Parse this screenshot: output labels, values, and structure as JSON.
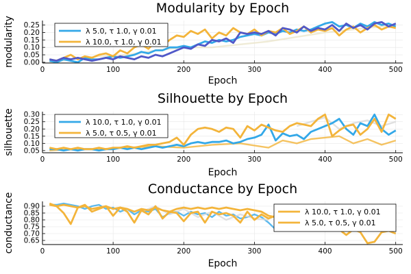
{
  "chart_data": [
    {
      "type": "line",
      "title": "Modularity by Epoch",
      "xlabel": "Epoch",
      "ylabel": "modularity",
      "xlim": [
        0,
        510
      ],
      "ylim": [
        -0.005,
        0.28
      ],
      "xticks": [
        0,
        100,
        200,
        300,
        400,
        500
      ],
      "yticks": [
        0.0,
        0.05,
        0.1,
        0.15,
        0.2,
        0.25
      ],
      "ytick_labels": [
        "0.00",
        "0.05",
        "0.10",
        "0.15",
        "0.20",
        "0.25"
      ],
      "grid": true,
      "legend_position": "top-left",
      "series": [
        {
          "name": "λ 5.0, τ 1.0, γ 0.01",
          "color": "#33a8e8",
          "x": [
            10,
            20,
            30,
            40,
            50,
            60,
            70,
            80,
            90,
            100,
            110,
            120,
            130,
            140,
            150,
            160,
            170,
            180,
            190,
            200,
            210,
            220,
            230,
            240,
            250,
            260,
            270,
            280,
            290,
            300,
            310,
            320,
            330,
            340,
            350,
            360,
            370,
            380,
            390,
            400,
            410,
            420,
            430,
            440,
            450,
            460,
            470,
            480,
            490,
            500
          ],
          "values": [
            0.01,
            0.0,
            0.02,
            0.01,
            0.0,
            0.03,
            0.02,
            0.02,
            0.03,
            0.04,
            0.03,
            0.04,
            0.05,
            0.07,
            0.06,
            0.08,
            0.08,
            0.1,
            0.1,
            0.11,
            0.1,
            0.12,
            0.14,
            0.13,
            0.15,
            0.14,
            0.15,
            0.17,
            0.18,
            0.19,
            0.18,
            0.2,
            0.19,
            0.21,
            0.2,
            0.22,
            0.21,
            0.22,
            0.24,
            0.26,
            0.27,
            0.24,
            0.25,
            0.23,
            0.26,
            0.24,
            0.27,
            0.25,
            0.26,
            0.24
          ]
        },
        {
          "name": "λ 10.0, τ 1.0, γ 0.01",
          "color": "#f3b43a",
          "x": [
            10,
            20,
            30,
            40,
            50,
            60,
            70,
            80,
            90,
            100,
            110,
            120,
            130,
            140,
            150,
            160,
            170,
            180,
            190,
            200,
            210,
            220,
            230,
            240,
            250,
            260,
            270,
            280,
            290,
            300,
            310,
            320,
            330,
            340,
            350,
            360,
            370,
            380,
            390,
            400,
            410,
            420,
            430,
            440,
            450,
            460,
            470,
            480,
            490,
            500
          ],
          "values": [
            0.02,
            0.01,
            0.03,
            0.05,
            0.02,
            0.04,
            0.03,
            0.05,
            0.06,
            0.04,
            0.08,
            0.06,
            0.1,
            0.12,
            0.09,
            0.14,
            0.11,
            0.15,
            0.18,
            0.17,
            0.21,
            0.19,
            0.22,
            0.16,
            0.2,
            0.18,
            0.23,
            0.2,
            0.19,
            0.22,
            0.18,
            0.21,
            0.2,
            0.23,
            0.19,
            0.21,
            0.24,
            0.2,
            0.22,
            0.21,
            0.23,
            0.18,
            0.22,
            0.24,
            0.2,
            0.23,
            0.25,
            0.22,
            0.24,
            0.23
          ]
        }
      ],
      "hidden_series": [
        {
          "color": "#5058c8",
          "x": [
            10,
            20,
            30,
            40,
            50,
            60,
            70,
            80,
            90,
            100,
            110,
            120,
            130,
            140,
            150,
            160,
            170,
            180,
            190,
            200,
            210,
            220,
            230,
            240,
            250,
            260,
            270,
            280,
            290,
            300,
            310,
            320,
            330,
            340,
            350,
            360,
            370,
            380,
            390,
            400,
            410,
            420,
            430,
            440,
            450,
            460,
            470,
            480,
            490,
            500
          ],
          "values": [
            0.02,
            0.01,
            0.03,
            0.02,
            0.03,
            0.02,
            0.01,
            0.02,
            0.03,
            0.02,
            0.04,
            0.03,
            0.02,
            0.04,
            0.03,
            0.05,
            0.04,
            0.06,
            0.08,
            0.1,
            0.09,
            0.12,
            0.11,
            0.15,
            0.14,
            0.16,
            0.13,
            0.2,
            0.19,
            0.2,
            0.19,
            0.21,
            0.18,
            0.23,
            0.22,
            0.2,
            0.24,
            0.21,
            0.23,
            0.22,
            0.25,
            0.21,
            0.26,
            0.23,
            0.25,
            0.22,
            0.26,
            0.27,
            0.24,
            0.26
          ]
        },
        {
          "color": "#ebe6cc",
          "x": [
            10,
            40,
            80,
            120,
            160,
            200,
            240,
            280,
            320,
            360,
            400,
            440,
            480,
            500
          ],
          "values": [
            0.0,
            0.02,
            0.04,
            0.05,
            0.08,
            0.1,
            0.1,
            0.12,
            0.14,
            0.17,
            0.2,
            0.22,
            0.24,
            0.25
          ]
        }
      ]
    },
    {
      "type": "line",
      "title": "Silhouette by Epoch",
      "xlabel": "Epoch",
      "ylabel": "silhouette",
      "xlim": [
        0,
        510
      ],
      "ylim": [
        0.035,
        0.32
      ],
      "xticks": [
        0,
        100,
        200,
        300,
        400,
        500
      ],
      "yticks": [
        0.05,
        0.1,
        0.15,
        0.2,
        0.25,
        0.3
      ],
      "ytick_labels": [
        "0.05",
        "0.10",
        "0.15",
        "0.20",
        "0.25",
        "0.30"
      ],
      "grid": true,
      "legend_position": "top-left",
      "series": [
        {
          "name": "λ 10.0, τ 1.0, γ 0.01",
          "color": "#33a8e8",
          "x": [
            10,
            20,
            30,
            40,
            50,
            60,
            70,
            80,
            90,
            100,
            110,
            120,
            130,
            140,
            150,
            160,
            170,
            180,
            190,
            200,
            210,
            220,
            230,
            240,
            250,
            260,
            270,
            280,
            290,
            300,
            310,
            320,
            330,
            340,
            350,
            360,
            370,
            380,
            390,
            400,
            410,
            420,
            430,
            440,
            450,
            460,
            470,
            480,
            490,
            500
          ],
          "values": [
            0.06,
            0.06,
            0.05,
            0.06,
            0.05,
            0.06,
            0.06,
            0.05,
            0.06,
            0.06,
            0.07,
            0.06,
            0.07,
            0.06,
            0.07,
            0.08,
            0.07,
            0.08,
            0.09,
            0.08,
            0.1,
            0.11,
            0.1,
            0.11,
            0.11,
            0.12,
            0.1,
            0.11,
            0.13,
            0.14,
            0.16,
            0.23,
            0.12,
            0.17,
            0.15,
            0.16,
            0.13,
            0.18,
            0.2,
            0.22,
            0.24,
            0.27,
            0.2,
            0.16,
            0.24,
            0.22,
            0.3,
            0.2,
            0.16,
            0.19
          ]
        },
        {
          "name": "λ 5.0, τ 0.5, γ 0.01",
          "color": "#f3b43a",
          "x": [
            10,
            20,
            30,
            40,
            50,
            60,
            70,
            80,
            90,
            100,
            110,
            120,
            130,
            140,
            150,
            160,
            170,
            180,
            190,
            200,
            210,
            220,
            230,
            240,
            250,
            260,
            270,
            280,
            290,
            300,
            310,
            320,
            330,
            340,
            350,
            360,
            370,
            380,
            390,
            400,
            410,
            420,
            430,
            440,
            450,
            460,
            470,
            480,
            490,
            500
          ],
          "values": [
            0.07,
            0.06,
            0.07,
            0.06,
            0.07,
            0.06,
            0.06,
            0.07,
            0.06,
            0.07,
            0.07,
            0.08,
            0.07,
            0.08,
            0.09,
            0.09,
            0.1,
            0.11,
            0.14,
            0.09,
            0.16,
            0.2,
            0.21,
            0.2,
            0.18,
            0.21,
            0.2,
            0.14,
            0.22,
            0.19,
            0.23,
            0.21,
            0.19,
            0.18,
            0.22,
            0.24,
            0.23,
            0.22,
            0.27,
            0.3,
            0.15,
            0.19,
            0.22,
            0.23,
            0.16,
            0.2,
            0.27,
            0.18,
            0.3,
            0.27
          ]
        }
      ],
      "hidden_series": [
        {
          "color": "#f3b43a",
          "x": [
            10,
            40,
            80,
            120,
            160,
            200,
            240,
            280,
            320,
            340,
            360,
            380,
            400,
            420,
            440,
            460,
            480,
            500
          ],
          "values": [
            0.05,
            0.06,
            0.06,
            0.07,
            0.08,
            0.07,
            0.09,
            0.1,
            0.07,
            0.12,
            0.1,
            0.13,
            0.14,
            0.15,
            0.1,
            0.13,
            0.09,
            0.12
          ]
        },
        {
          "color": "#d8d8d8",
          "x": [
            360,
            380,
            400,
            420,
            440,
            460,
            480,
            500
          ],
          "values": [
            0.22,
            0.25,
            0.28,
            0.2,
            0.24,
            0.26,
            0.22,
            0.25
          ]
        }
      ]
    },
    {
      "type": "line",
      "title": "Conductance by Epoch",
      "xlabel": "Epoch",
      "ylabel": "conductance",
      "xlim": [
        0,
        510
      ],
      "ylim": [
        0.62,
        0.935
      ],
      "xticks": [
        0,
        100,
        200,
        300,
        400,
        500
      ],
      "yticks": [
        0.65,
        0.7,
        0.75,
        0.8,
        0.85,
        0.9
      ],
      "ytick_labels": [
        "0.65",
        "0.70",
        "0.75",
        "0.80",
        "0.85",
        "0.90"
      ],
      "grid": true,
      "legend_position": "top-right",
      "series": [
        {
          "name": "λ 10.0, τ 1.0, γ 0.01",
          "color": "#f3b43a",
          "x": [
            10,
            20,
            30,
            40,
            50,
            60,
            70,
            80,
            90,
            100,
            110,
            120,
            130,
            140,
            150,
            160,
            170,
            180,
            190,
            200,
            210,
            220,
            230,
            240,
            250,
            260,
            270,
            280,
            290,
            300,
            310,
            320,
            330,
            340,
            350,
            360,
            370,
            380,
            390,
            400,
            410,
            420,
            430,
            440,
            450,
            460,
            470,
            480,
            490,
            500
          ],
          "values": [
            0.91,
            0.9,
            0.91,
            0.9,
            0.89,
            0.9,
            0.88,
            0.89,
            0.9,
            0.88,
            0.89,
            0.88,
            0.86,
            0.88,
            0.87,
            0.89,
            0.87,
            0.86,
            0.88,
            0.89,
            0.88,
            0.89,
            0.88,
            0.89,
            0.88,
            0.89,
            0.88,
            0.87,
            0.88,
            0.87,
            0.86,
            0.83,
            0.82,
            0.86,
            0.78,
            0.85,
            0.82,
            0.8,
            0.77,
            0.76,
            0.79,
            0.73,
            0.69,
            0.73,
            0.71,
            0.63,
            0.64,
            0.71,
            0.72,
            0.7
          ]
        },
        {
          "name": "λ 5.0, τ 0.5, γ 0.01",
          "color": "#f3b43a",
          "x": [
            10,
            20,
            30,
            40,
            50,
            60,
            70,
            80,
            90,
            100,
            110,
            120,
            130,
            140,
            150,
            160,
            170,
            180,
            190,
            200,
            210,
            220,
            230,
            240,
            250,
            260,
            270,
            280,
            290,
            300,
            310,
            320,
            330,
            340,
            350,
            360,
            370,
            380,
            390,
            400,
            410,
            420,
            430,
            440,
            450,
            460,
            470,
            480,
            490,
            500
          ],
          "values": [
            0.92,
            0.9,
            0.85,
            0.77,
            0.89,
            0.91,
            0.86,
            0.88,
            0.9,
            0.83,
            0.89,
            0.86,
            0.78,
            0.87,
            0.84,
            0.9,
            0.81,
            0.86,
            0.85,
            0.79,
            0.85,
            0.86,
            0.78,
            0.86,
            0.84,
            0.85,
            0.83,
            0.78,
            0.86,
            0.8,
            0.84,
            0.81,
            0.83,
            0.79,
            0.85,
            0.8,
            0.82,
            0.78,
            0.83,
            0.8,
            0.79,
            0.81,
            0.78,
            0.8,
            0.77,
            0.79,
            0.76,
            0.78,
            0.77,
            0.76
          ]
        }
      ],
      "hidden_series": [
        {
          "color": "#33a8e8",
          "x": [
            10,
            20,
            30,
            40,
            50,
            60,
            70,
            80,
            90,
            100,
            110,
            120,
            130,
            140,
            150,
            160,
            170,
            180,
            190,
            200,
            210,
            220,
            230,
            240,
            250,
            260,
            270,
            280,
            290,
            300,
            310,
            320,
            330,
            340,
            350,
            360,
            370,
            380,
            390,
            400,
            410,
            420,
            430,
            440,
            450,
            460,
            470,
            480,
            490,
            500
          ],
          "values": [
            0.91,
            0.91,
            0.92,
            0.91,
            0.9,
            0.88,
            0.9,
            0.91,
            0.88,
            0.89,
            0.86,
            0.88,
            0.84,
            0.87,
            0.86,
            0.88,
            0.82,
            0.85,
            0.86,
            0.83,
            0.86,
            0.84,
            0.85,
            0.82,
            0.86,
            0.83,
            0.84,
            0.81,
            0.82,
            0.84,
            0.82,
            0.78,
            0.73,
            0.8,
            0.78,
            0.82,
            0.8,
            0.78,
            0.79,
            0.8,
            0.78,
            0.79,
            0.77,
            0.78,
            0.78,
            0.76,
            0.79,
            0.77,
            0.78,
            0.77
          ]
        },
        {
          "color": "#d8d8d8",
          "x": [
            140,
            160,
            180,
            200,
            220,
            240,
            260,
            280,
            300,
            320
          ],
          "values": [
            0.86,
            0.9,
            0.84,
            0.88,
            0.82,
            0.86,
            0.8,
            0.84,
            0.81,
            0.8
          ]
        }
      ]
    }
  ]
}
